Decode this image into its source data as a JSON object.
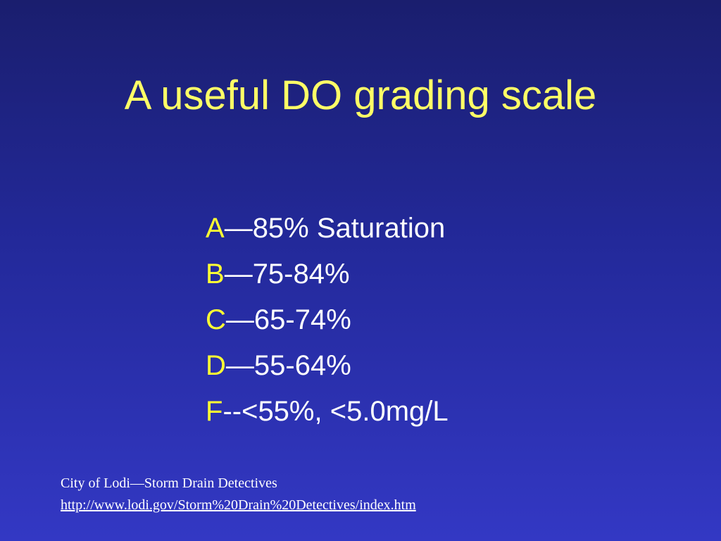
{
  "slide": {
    "title": "A useful DO grading scale",
    "grades": [
      {
        "letter": "A",
        "range": "—85% Saturation"
      },
      {
        "letter": "B",
        "range": "—75-84%"
      },
      {
        "letter": "C",
        "range": "—65-74%"
      },
      {
        "letter": "D",
        "range": "—55-64%"
      },
      {
        "letter": "F",
        "range": "--<55%, <5.0mg/L"
      }
    ],
    "source": {
      "credit": "City of Lodi—Storm Drain Detectives",
      "url": "http://www.lodi.gov/Storm%20Drain%20Detectives/index.htm"
    }
  },
  "colors": {
    "title": "#ffff66",
    "grade_letter": "#ffff33",
    "body_text": "#ffffff",
    "background_top": "#1a1e6e",
    "background_bottom": "#3338c4"
  }
}
